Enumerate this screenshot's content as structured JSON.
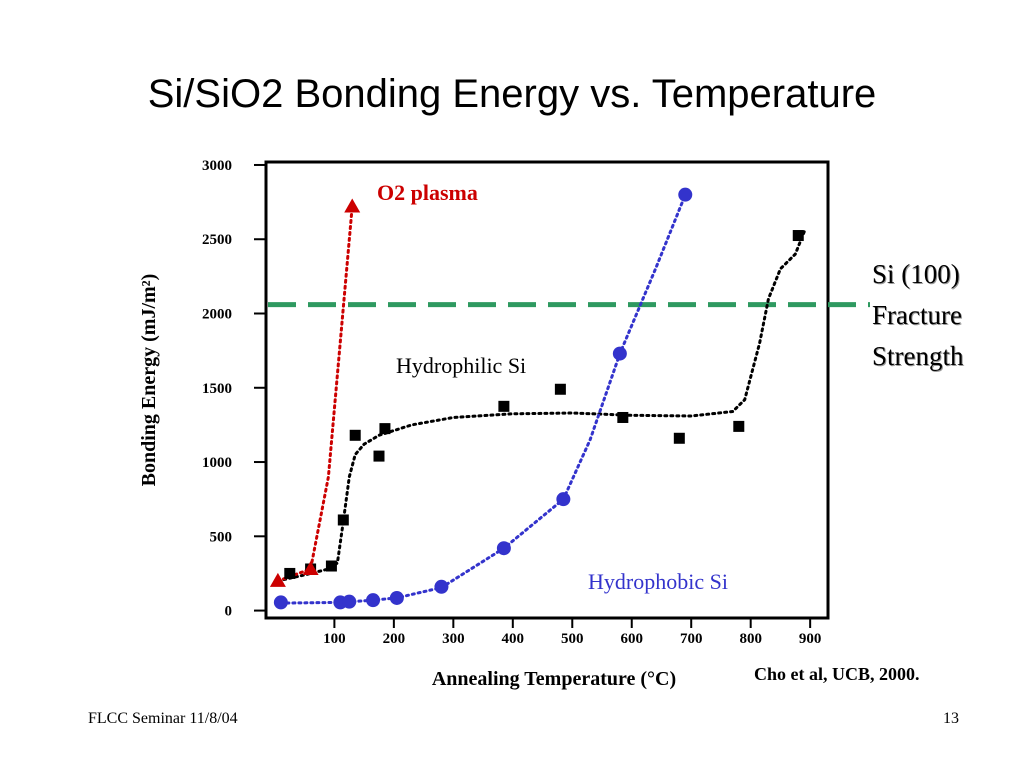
{
  "slide": {
    "title": "Si/SiO2 Bonding Energy vs. Temperature",
    "side_note": [
      "Si (100)",
      "Fracture",
      "Strength"
    ],
    "citation": "Cho et al, UCB, 2000.",
    "footer_left": "FLCC Seminar 11/8/04",
    "page_number": "13"
  },
  "chart_data": {
    "type": "scatter",
    "ylabel": "Bonding Energy (mJ/m²)",
    "xlabel": "Annealing Temperature (°C)",
    "xlim": [
      -15,
      930
    ],
    "ylim": [
      -50,
      3020
    ],
    "x_ticks": [
      100,
      200,
      300,
      400,
      500,
      600,
      700,
      800,
      900
    ],
    "y_ticks": [
      0,
      500,
      1000,
      1500,
      2000,
      2500,
      3000
    ],
    "grid": false,
    "series": [
      {
        "name": "Hydrophilic Si",
        "marker": "square",
        "color": "#000000",
        "points": [
          [
            25,
            250
          ],
          [
            60,
            280
          ],
          [
            95,
            300
          ],
          [
            115,
            610
          ],
          [
            135,
            1180
          ],
          [
            175,
            1040
          ],
          [
            185,
            1225
          ],
          [
            385,
            1375
          ],
          [
            480,
            1490
          ],
          [
            585,
            1300
          ],
          [
            680,
            1160
          ],
          [
            780,
            1240
          ],
          [
            880,
            2525
          ]
        ],
        "trend": [
          [
            5,
            200
          ],
          [
            50,
            240
          ],
          [
            90,
            280
          ],
          [
            105,
            320
          ],
          [
            115,
            600
          ],
          [
            125,
            900
          ],
          [
            135,
            1050
          ],
          [
            150,
            1120
          ],
          [
            175,
            1180
          ],
          [
            230,
            1250
          ],
          [
            300,
            1300
          ],
          [
            400,
            1325
          ],
          [
            500,
            1330
          ],
          [
            600,
            1315
          ],
          [
            700,
            1310
          ],
          [
            770,
            1340
          ],
          [
            790,
            1420
          ],
          [
            815,
            1800
          ],
          [
            830,
            2100
          ],
          [
            850,
            2300
          ],
          [
            875,
            2400
          ],
          [
            890,
            2550
          ]
        ]
      },
      {
        "name": "Hydrophobic Si",
        "marker": "circle",
        "color": "#3333cc",
        "points": [
          [
            10,
            55
          ],
          [
            110,
            55
          ],
          [
            125,
            60
          ],
          [
            165,
            70
          ],
          [
            205,
            85
          ],
          [
            280,
            160
          ],
          [
            385,
            420
          ],
          [
            485,
            750
          ],
          [
            580,
            1730
          ],
          [
            690,
            2800
          ]
        ],
        "trend": [
          [
            10,
            50
          ],
          [
            110,
            55
          ],
          [
            165,
            70
          ],
          [
            205,
            85
          ],
          [
            280,
            155
          ],
          [
            385,
            420
          ],
          [
            485,
            750
          ],
          [
            530,
            1150
          ],
          [
            580,
            1730
          ],
          [
            640,
            2300
          ],
          [
            690,
            2800
          ]
        ]
      },
      {
        "name": "O2 plasma",
        "marker": "triangle",
        "color": "#cc0000",
        "points": [
          [
            5,
            200
          ],
          [
            60,
            280
          ],
          [
            130,
            2720
          ]
        ],
        "trend": [
          [
            5,
            200
          ],
          [
            60,
            280
          ],
          [
            90,
            900
          ],
          [
            130,
            2720
          ]
        ]
      }
    ],
    "reference_line": {
      "y": 2060,
      "color": "#2e9960",
      "style": "dashed"
    },
    "annotations": {
      "o2_plasma": "O2 plasma",
      "hydrophilic": "Hydrophilic Si",
      "hydrophobic": "Hydrophobic Si"
    },
    "colors": {
      "blue": "#3333cc",
      "red": "#cc0000",
      "green": "#2e9960",
      "black": "#000000"
    }
  }
}
